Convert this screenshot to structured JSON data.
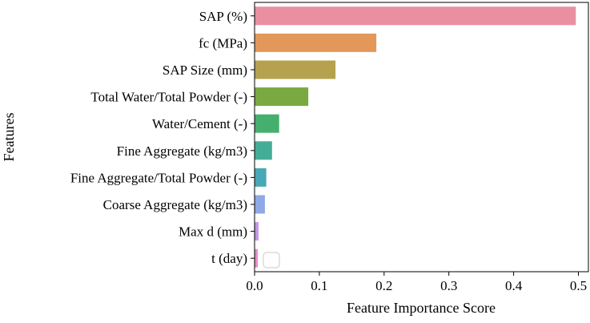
{
  "chart_data": {
    "type": "bar",
    "orientation": "horizontal",
    "title": "",
    "xlabel": "Feature Importance Score",
    "ylabel": "Features",
    "xlim": [
      0,
      0.52
    ],
    "xticks": [
      "0.0",
      "0.1",
      "0.2",
      "0.3",
      "0.4",
      "0.5"
    ],
    "grid": false,
    "legend": "empty box near bottom-left",
    "categories": [
      "SAP (%)",
      "fc (MPa)",
      "SAP Size (mm)",
      "Total Water/Total Powder (-)",
      "Water/Cement (-)",
      "Fine Aggregate (kg/m3)",
      "Fine Aggregate/Total Powder (-)",
      "Coarse Aggregate (kg/m3)",
      "Max d (mm)",
      "t (day)"
    ],
    "values": [
      0.496,
      0.188,
      0.125,
      0.083,
      0.038,
      0.027,
      0.018,
      0.016,
      0.006,
      0.005
    ],
    "colors": [
      "#ea8fa1",
      "#e3985a",
      "#b6a24e",
      "#7aa841",
      "#45b06e",
      "#45ac97",
      "#47a8b6",
      "#8fa9e6",
      "#c495e4",
      "#e68ccd"
    ]
  }
}
